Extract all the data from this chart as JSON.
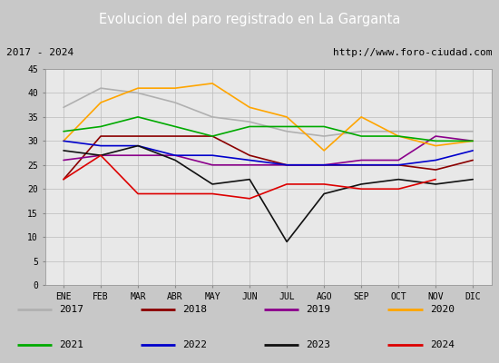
{
  "title": "Evolucion del paro registrado en La Garganta",
  "title_color": "#ffffff",
  "title_bg": "#4f86c6",
  "subtitle_left": "2017 - 2024",
  "subtitle_right": "http://www.foro-ciudad.com",
  "months": [
    "ENE",
    "FEB",
    "MAR",
    "ABR",
    "MAY",
    "JUN",
    "JUL",
    "AGO",
    "SEP",
    "OCT",
    "NOV",
    "DIC"
  ],
  "ylim": [
    0,
    45
  ],
  "yticks": [
    0,
    5,
    10,
    15,
    20,
    25,
    30,
    35,
    40,
    45
  ],
  "series": {
    "2017": {
      "color": "#b0b0b0",
      "data": [
        37,
        41,
        40,
        38,
        35,
        34,
        32,
        31,
        32,
        32,
        32,
        32
      ]
    },
    "2018": {
      "color": "#8b0000",
      "data": [
        22,
        31,
        31,
        31,
        31,
        27,
        25,
        25,
        25,
        25,
        24,
        26
      ]
    },
    "2019": {
      "color": "#8B008B",
      "data": [
        26,
        27,
        27,
        27,
        25,
        25,
        25,
        25,
        26,
        26,
        31,
        30
      ]
    },
    "2020": {
      "color": "#FFA500",
      "data": [
        30,
        38,
        41,
        41,
        42,
        37,
        35,
        28,
        35,
        31,
        29,
        30
      ]
    },
    "2021": {
      "color": "#00aa00",
      "data": [
        32,
        33,
        35,
        33,
        31,
        33,
        33,
        33,
        31,
        31,
        30,
        30
      ]
    },
    "2022": {
      "color": "#0000cc",
      "data": [
        30,
        29,
        29,
        27,
        27,
        26,
        25,
        25,
        25,
        25,
        26,
        28
      ]
    },
    "2023": {
      "color": "#111111",
      "data": [
        28,
        27,
        29,
        26,
        21,
        22,
        9,
        19,
        21,
        22,
        21,
        22
      ]
    },
    "2024": {
      "color": "#dd0000",
      "data": [
        22,
        27,
        19,
        19,
        19,
        18,
        21,
        21,
        20,
        20,
        22,
        null
      ]
    }
  },
  "legend_order": [
    "2017",
    "2018",
    "2019",
    "2020",
    "2021",
    "2022",
    "2023",
    "2024"
  ],
  "outer_bg": "#c8c8c8",
  "inner_bg": "#e8e8e8",
  "plot_bg": "#e8e8e8"
}
